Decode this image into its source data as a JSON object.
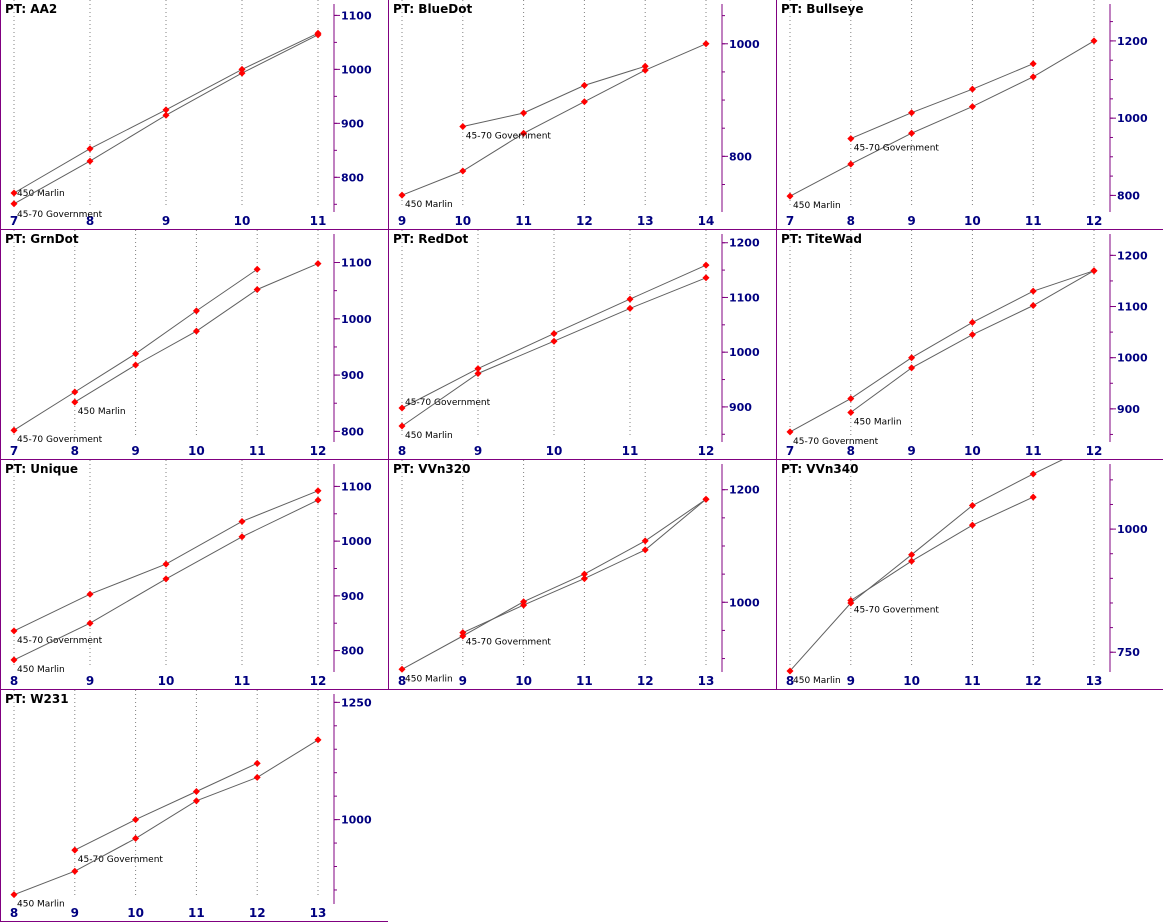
{
  "title_prefix": "PT: ",
  "colors": {
    "frame": "#800080",
    "grid": "#808080",
    "axis_y": "#000080",
    "series_line": "#606060",
    "marker": "#ff0000"
  },
  "chart_data": [
    {
      "type": "line",
      "title": "AA2",
      "xlim": [
        7,
        11
      ],
      "ylim": [
        745,
        1110
      ],
      "xticks": [
        7,
        8,
        9,
        10,
        11
      ],
      "yticks": [
        800,
        900,
        1000,
        1100
      ],
      "series": [
        {
          "name": "450 Marlin",
          "x": [
            7,
            8,
            9,
            10,
            11
          ],
          "y": [
            771,
            853,
            925,
            1000,
            1067
          ]
        },
        {
          "name": "45-70 Government",
          "x": [
            7,
            8,
            9,
            10,
            11
          ],
          "y": [
            751,
            830,
            915,
            993,
            1064
          ]
        }
      ]
    },
    {
      "type": "line",
      "title": "BlueDot",
      "xlim": [
        9,
        14
      ],
      "ylim": [
        710,
        1060
      ],
      "xticks": [
        9,
        10,
        11,
        12,
        13,
        14
      ],
      "yticks": [
        800,
        1000
      ],
      "series": [
        {
          "name": "450 Marlin",
          "x": [
            9,
            10,
            11,
            12,
            13,
            14
          ],
          "y": [
            731,
            774,
            841,
            897,
            953,
            1000
          ]
        },
        {
          "name": "45-70 Government",
          "x": [
            10,
            11,
            12,
            13
          ],
          "y": [
            853,
            877,
            926,
            960
          ]
        }
      ]
    },
    {
      "type": "line",
      "title": "Bullseye",
      "xlim": [
        7,
        12
      ],
      "ylim": [
        770,
        1280
      ],
      "xticks": [
        7,
        8,
        9,
        10,
        11,
        12
      ],
      "yticks": [
        800,
        1000,
        1200
      ],
      "series": [
        {
          "name": "450 Marlin",
          "x": [
            7,
            8,
            9,
            10,
            11,
            12
          ],
          "y": [
            798,
            881,
            961,
            1030,
            1107,
            1200
          ]
        },
        {
          "name": "45-70 Government",
          "x": [
            8,
            9,
            10,
            11
          ],
          "y": [
            947,
            1014,
            1075,
            1141
          ]
        }
      ]
    },
    {
      "type": "line",
      "title": "GrnDot",
      "xlim": [
        7,
        12
      ],
      "ylim": [
        790,
        1140
      ],
      "xticks": [
        7,
        8,
        9,
        10,
        11,
        12
      ],
      "yticks": [
        800,
        900,
        1000,
        1100
      ],
      "series": [
        {
          "name": "45-70 Government",
          "x": [
            7,
            8,
            9,
            10,
            11
          ],
          "y": [
            802,
            870,
            938,
            1014,
            1088
          ]
        },
        {
          "name": "450 Marlin",
          "x": [
            8,
            9,
            10,
            11,
            12
          ],
          "y": [
            852,
            918,
            978,
            1052,
            1098
          ]
        }
      ]
    },
    {
      "type": "line",
      "title": "RedDot",
      "xlim": [
        8,
        12
      ],
      "ylim": [
        845,
        1205
      ],
      "xticks": [
        8,
        9,
        10,
        11,
        12
      ],
      "yticks": [
        900,
        1000,
        1100,
        1200
      ],
      "series": [
        {
          "name": "45-70 Government",
          "x": [
            8,
            9,
            10,
            11,
            12
          ],
          "y": [
            898,
            970,
            1034,
            1097,
            1159
          ]
        },
        {
          "name": "450 Marlin",
          "x": [
            8,
            9,
            10,
            11,
            12
          ],
          "y": [
            865,
            961,
            1020,
            1080,
            1136
          ]
        }
      ]
    },
    {
      "type": "line",
      "title": "TiteWad",
      "xlim": [
        7,
        12
      ],
      "ylim": [
        845,
        1230
      ],
      "xticks": [
        7,
        8,
        9,
        10,
        11,
        12
      ],
      "yticks": [
        900,
        1000,
        1100,
        1200
      ],
      "series": [
        {
          "name": "45-70 Government",
          "x": [
            7,
            8,
            9,
            10,
            11,
            12
          ],
          "y": [
            855,
            920,
            1000,
            1069,
            1130,
            1170
          ]
        },
        {
          "name": "450 Marlin",
          "x": [
            8,
            9,
            10,
            11,
            12
          ],
          "y": [
            893,
            980,
            1045,
            1102,
            1170
          ]
        }
      ]
    },
    {
      "type": "line",
      "title": "Unique",
      "xlim": [
        8,
        12
      ],
      "ylim": [
        770,
        1130
      ],
      "xticks": [
        8,
        9,
        10,
        11,
        12
      ],
      "yticks": [
        800,
        900,
        1000,
        1100
      ],
      "series": [
        {
          "name": "45-70 Government",
          "x": [
            8,
            9,
            10,
            11,
            12
          ],
          "y": [
            836,
            903,
            958,
            1036,
            1092
          ]
        },
        {
          "name": "450 Marlin",
          "x": [
            8,
            9,
            10,
            11,
            12
          ],
          "y": [
            783,
            850,
            931,
            1008,
            1075
          ]
        }
      ]
    },
    {
      "type": "line",
      "title": "VVn320",
      "xlim": [
        8,
        13
      ],
      "ylim": [
        885,
        1235
      ],
      "xticks": [
        8,
        9,
        10,
        11,
        12,
        13
      ],
      "yticks": [
        1000,
        1200
      ],
      "series": [
        {
          "name": "45-70 Government",
          "x": [
            9,
            10,
            11,
            12,
            13
          ],
          "y": [
            946,
            995,
            1042,
            1093,
            1183
          ]
        },
        {
          "name": "450 Marlin",
          "x": [
            8,
            9,
            10,
            11,
            12,
            13
          ],
          "y": [
            881,
            940,
            1001,
            1050,
            1109,
            1183
          ]
        }
      ]
    },
    {
      "type": "line",
      "title": "VVn340",
      "xlim": [
        8,
        13
      ],
      "ylim": [
        720,
        1120
      ],
      "xticks": [
        8,
        9,
        10,
        11,
        12,
        13
      ],
      "yticks": [
        750,
        1000
      ],
      "series": [
        {
          "name": "45-70 Government",
          "x": [
            9,
            10,
            11,
            12
          ],
          "y": [
            855,
            935,
            1008,
            1065
          ]
        },
        {
          "name": "450 Marlin",
          "x": [
            8,
            9,
            10,
            11,
            12,
            13
          ],
          "y": [
            712,
            850,
            948,
            1048,
            1112,
            1172
          ]
        }
      ]
    },
    {
      "type": "line",
      "title": "W231",
      "xlim": [
        8,
        13
      ],
      "ylim": [
        835,
        1255
      ],
      "xticks": [
        8,
        9,
        10,
        11,
        12,
        13
      ],
      "yticks": [
        1000,
        1250
      ],
      "series": [
        {
          "name": "45-70 Government",
          "x": [
            9,
            10,
            11,
            12
          ],
          "y": [
            935,
            1000,
            1060,
            1120
          ]
        },
        {
          "name": "450 Marlin",
          "x": [
            8,
            9,
            10,
            11,
            12,
            13
          ],
          "y": [
            840,
            890,
            960,
            1040,
            1090,
            1170
          ]
        }
      ]
    }
  ]
}
